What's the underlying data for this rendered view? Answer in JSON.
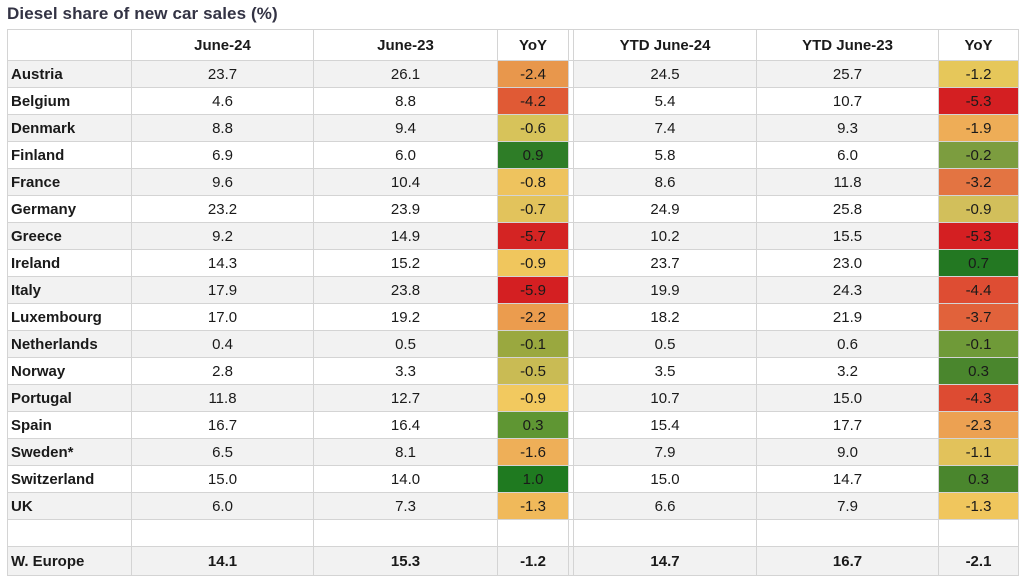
{
  "title": "Diesel share of new car sales (%)",
  "columns": [
    "",
    "June-24",
    "June-23",
    "YoY",
    "YTD June-24",
    "YTD June-23",
    "YoY"
  ],
  "rows": [
    {
      "country": "Austria",
      "jun24": "23.7",
      "jun23": "26.1",
      "yoy": "-2.4",
      "ytd24": "24.5",
      "ytd23": "25.7",
      "ytd_yoy": "-1.2",
      "yoy_color": "#e8974c",
      "ytd_yoy_color": "#e6c75a"
    },
    {
      "country": "Belgium",
      "jun24": "4.6",
      "jun23": "8.8",
      "yoy": "-4.2",
      "ytd24": "5.4",
      "ytd23": "10.7",
      "ytd_yoy": "-5.3",
      "yoy_color": "#e05a35",
      "ytd_yoy_color": "#d41f22"
    },
    {
      "country": "Denmark",
      "jun24": "8.8",
      "jun23": "9.4",
      "yoy": "-0.6",
      "ytd24": "7.4",
      "ytd23": "9.3",
      "ytd_yoy": "-1.9",
      "yoy_color": "#d7c35a",
      "ytd_yoy_color": "#eead57"
    },
    {
      "country": "Finland",
      "jun24": "6.9",
      "jun23": "6.0",
      "yoy": "0.9",
      "ytd24": "5.8",
      "ytd23": "6.0",
      "ytd_yoy": "-0.2",
      "yoy_color": "#2e7d27",
      "ytd_yoy_color": "#7c9d3f"
    },
    {
      "country": "France",
      "jun24": "9.6",
      "jun23": "10.4",
      "yoy": "-0.8",
      "ytd24": "8.6",
      "ytd23": "11.8",
      "ytd_yoy": "-3.2",
      "yoy_color": "#eec35e",
      "ytd_yoy_color": "#e37442"
    },
    {
      "country": "Germany",
      "jun24": "23.2",
      "jun23": "23.9",
      "yoy": "-0.7",
      "ytd24": "24.9",
      "ytd23": "25.8",
      "ytd_yoy": "-0.9",
      "yoy_color": "#e2c35c",
      "ytd_yoy_color": "#d2bf5b"
    },
    {
      "country": "Greece",
      "jun24": "9.2",
      "jun23": "14.9",
      "yoy": "-5.7",
      "ytd24": "10.2",
      "ytd23": "15.5",
      "ytd_yoy": "-5.3",
      "yoy_color": "#d42423",
      "ytd_yoy_color": "#d41f22"
    },
    {
      "country": "Ireland",
      "jun24": "14.3",
      "jun23": "15.2",
      "yoy": "-0.9",
      "ytd24": "23.7",
      "ytd23": "23.0",
      "ytd_yoy": "0.7",
      "yoy_color": "#f0c65d",
      "ytd_yoy_color": "#237822"
    },
    {
      "country": "Italy",
      "jun24": "17.9",
      "jun23": "23.8",
      "yoy": "-5.9",
      "ytd24": "19.9",
      "ytd23": "24.3",
      "ytd_yoy": "-4.4",
      "yoy_color": "#d41f22",
      "ytd_yoy_color": "#de4d33"
    },
    {
      "country": "Luxembourg",
      "jun24": "17.0",
      "jun23": "19.2",
      "yoy": "-2.2",
      "ytd24": "18.2",
      "ytd23": "21.9",
      "ytd_yoy": "-3.7",
      "yoy_color": "#eb9c4e",
      "ytd_yoy_color": "#e1623b"
    },
    {
      "country": "Netherlands",
      "jun24": "0.4",
      "jun23": "0.5",
      "yoy": "-0.1",
      "ytd24": "0.5",
      "ytd23": "0.6",
      "ytd_yoy": "-0.1",
      "yoy_color": "#9aa83f",
      "ytd_yoy_color": "#6f9a38"
    },
    {
      "country": "Norway",
      "jun24": "2.8",
      "jun23": "3.3",
      "yoy": "-0.5",
      "ytd24": "3.5",
      "ytd23": "3.2",
      "ytd_yoy": "0.3",
      "yoy_color": "#c9bb54",
      "ytd_yoy_color": "#4a862d"
    },
    {
      "country": "Portugal",
      "jun24": "11.8",
      "jun23": "12.7",
      "yoy": "-0.9",
      "ytd24": "10.7",
      "ytd23": "15.0",
      "ytd_yoy": "-4.3",
      "yoy_color": "#f2c95f",
      "ytd_yoy_color": "#dd4b32"
    },
    {
      "country": "Spain",
      "jun24": "16.7",
      "jun23": "16.4",
      "yoy": "0.3",
      "ytd24": "15.4",
      "ytd23": "17.7",
      "ytd_yoy": "-2.3",
      "yoy_color": "#5f9633",
      "ytd_yoy_color": "#eca152"
    },
    {
      "country": "Sweden*",
      "jun24": "6.5",
      "jun23": "8.1",
      "yoy": "-1.6",
      "ytd24": "7.9",
      "ytd23": "9.0",
      "ytd_yoy": "-1.1",
      "yoy_color": "#eeaf58",
      "ytd_yoy_color": "#e2c25b"
    },
    {
      "country": "Switzerland",
      "jun24": "15.0",
      "jun23": "14.0",
      "yoy": "1.0",
      "ytd24": "15.0",
      "ytd23": "14.7",
      "ytd_yoy": "0.3",
      "yoy_color": "#1f7a20",
      "ytd_yoy_color": "#4a862d"
    },
    {
      "country": "UK",
      "jun24": "6.0",
      "jun23": "7.3",
      "yoy": "-1.3",
      "ytd24": "6.6",
      "ytd23": "7.9",
      "ytd_yoy": "-1.3",
      "yoy_color": "#f0b95a",
      "ytd_yoy_color": "#f0c65d"
    }
  ],
  "total": {
    "country": "W. Europe",
    "jun24": "14.1",
    "jun23": "15.3",
    "yoy": "-1.2",
    "ytd24": "14.7",
    "ytd23": "16.7",
    "ytd_yoy": "-2.1"
  }
}
